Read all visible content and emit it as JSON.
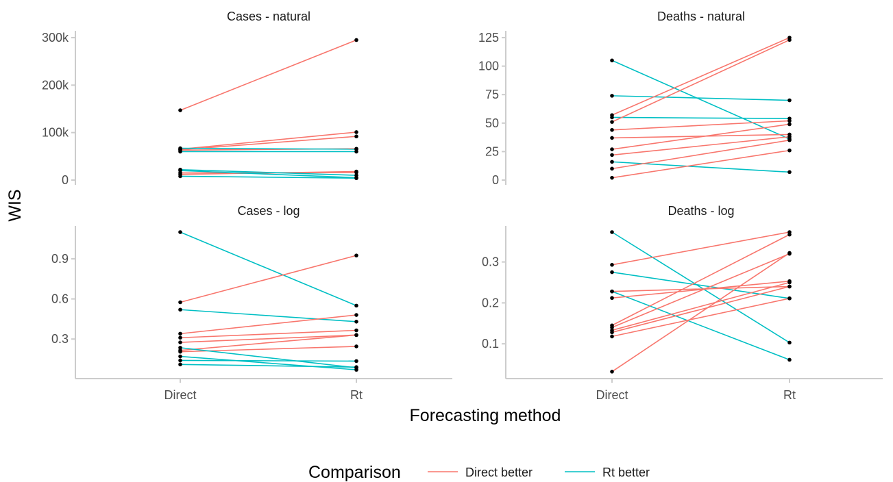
{
  "chart_data": {
    "type": "line",
    "xlabel": "Forecasting method",
    "ylabel": "WIS",
    "categories": [
      "Direct",
      "Rt"
    ],
    "legend": {
      "title": "Comparison",
      "position": "bottom",
      "entries": [
        {
          "name": "Direct better",
          "color": "#F8766D"
        },
        {
          "name": "Rt better",
          "color": "#00BFC4"
        }
      ]
    },
    "grid": false,
    "panels": [
      {
        "title": "Cases - natural",
        "ylim": [
          0,
          300000
        ],
        "yticks": [
          0,
          100000,
          200000,
          300000
        ],
        "yticklabels": [
          "0",
          "100k",
          "200k",
          "300k"
        ],
        "segments": [
          {
            "direct": 147000,
            "rt": 295000,
            "better": "Direct better"
          },
          {
            "direct": 65000,
            "rt": 101000,
            "better": "Direct better"
          },
          {
            "direct": 64000,
            "rt": 92000,
            "better": "Direct better"
          },
          {
            "direct": 63000,
            "rt": 66000,
            "better": "Direct better"
          },
          {
            "direct": 60000,
            "rt": 60000,
            "better": "Rt better"
          },
          {
            "direct": 67000,
            "rt": 65000,
            "better": "Rt better"
          },
          {
            "direct": 12000,
            "rt": 18000,
            "better": "Direct better"
          },
          {
            "direct": 15000,
            "rt": 16000,
            "better": "Direct better"
          },
          {
            "direct": 22000,
            "rt": 10000,
            "better": "Rt better"
          },
          {
            "direct": 20000,
            "rt": 5000,
            "better": "Rt better"
          },
          {
            "direct": 8000,
            "rt": 4000,
            "better": "Rt better"
          }
        ]
      },
      {
        "title": "Deaths - natural",
        "ylim": [
          0,
          125
        ],
        "yticks": [
          0,
          25,
          50,
          75,
          100,
          125
        ],
        "yticklabels": [
          "0",
          "25",
          "50",
          "75",
          "100",
          "125"
        ],
        "segments": [
          {
            "direct": 105,
            "rt": 36,
            "better": "Rt better"
          },
          {
            "direct": 74,
            "rt": 70,
            "better": "Rt better"
          },
          {
            "direct": 55,
            "rt": 54,
            "better": "Rt better"
          },
          {
            "direct": 16,
            "rt": 7,
            "better": "Rt better"
          },
          {
            "direct": 57,
            "rt": 125,
            "better": "Direct better"
          },
          {
            "direct": 51,
            "rt": 123,
            "better": "Direct better"
          },
          {
            "direct": 44,
            "rt": 52,
            "better": "Direct better"
          },
          {
            "direct": 37,
            "rt": 40,
            "better": "Direct better"
          },
          {
            "direct": 27,
            "rt": 49,
            "better": "Direct better"
          },
          {
            "direct": 22,
            "rt": 38,
            "better": "Direct better"
          },
          {
            "direct": 10,
            "rt": 35,
            "better": "Direct better"
          },
          {
            "direct": 2,
            "rt": 26,
            "better": "Direct better"
          }
        ]
      },
      {
        "title": "Cases - log",
        "ylim": [
          0.05,
          1.1
        ],
        "yticks": [
          0.3,
          0.6,
          0.9
        ],
        "yticklabels": [
          "0.3",
          "0.6",
          "0.9"
        ],
        "segments": [
          {
            "direct": 1.1,
            "rt": 0.55,
            "better": "Rt better"
          },
          {
            "direct": 0.52,
            "rt": 0.43,
            "better": "Rt better"
          },
          {
            "direct": 0.575,
            "rt": 0.925,
            "better": "Direct better"
          },
          {
            "direct": 0.34,
            "rt": 0.48,
            "better": "Direct better"
          },
          {
            "direct": 0.31,
            "rt": 0.365,
            "better": "Direct better"
          },
          {
            "direct": 0.275,
            "rt": 0.33,
            "better": "Direct better"
          },
          {
            "direct": 0.215,
            "rt": 0.33,
            "better": "Direct better"
          },
          {
            "direct": 0.205,
            "rt": 0.245,
            "better": "Direct better"
          },
          {
            "direct": 0.235,
            "rt": 0.085,
            "better": "Rt better"
          },
          {
            "direct": 0.17,
            "rt": 0.07,
            "better": "Rt better"
          },
          {
            "direct": 0.14,
            "rt": 0.135,
            "better": "Rt better"
          },
          {
            "direct": 0.11,
            "rt": 0.09,
            "better": "Rt better"
          }
        ]
      },
      {
        "title": "Deaths - log",
        "ylim": [
          0.03,
          0.373
        ],
        "yticks": [
          0.1,
          0.2,
          0.3
        ],
        "yticklabels": [
          "0.1",
          "0.2",
          "0.3"
        ],
        "segments": [
          {
            "direct": 0.373,
            "rt": 0.103,
            "better": "Rt better"
          },
          {
            "direct": 0.275,
            "rt": 0.211,
            "better": "Rt better"
          },
          {
            "direct": 0.228,
            "rt": 0.061,
            "better": "Rt better"
          },
          {
            "direct": 0.293,
            "rt": 0.373,
            "better": "Direct better"
          },
          {
            "direct": 0.228,
            "rt": 0.24,
            "better": "Direct better"
          },
          {
            "direct": 0.212,
            "rt": 0.253,
            "better": "Direct better"
          },
          {
            "direct": 0.145,
            "rt": 0.367,
            "better": "Direct better"
          },
          {
            "direct": 0.14,
            "rt": 0.32,
            "better": "Direct better"
          },
          {
            "direct": 0.133,
            "rt": 0.25,
            "better": "Direct better"
          },
          {
            "direct": 0.128,
            "rt": 0.24,
            "better": "Direct better"
          },
          {
            "direct": 0.118,
            "rt": 0.211,
            "better": "Direct better"
          },
          {
            "direct": 0.032,
            "rt": 0.322,
            "better": "Direct better"
          }
        ]
      }
    ]
  }
}
